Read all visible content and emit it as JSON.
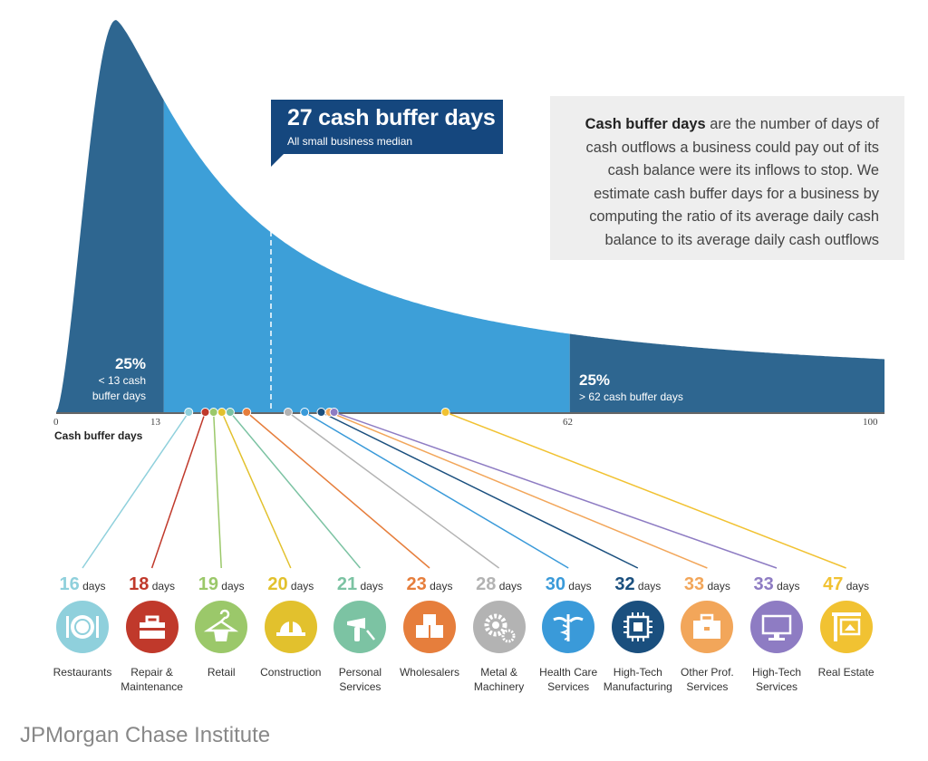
{
  "chart_data": {
    "type": "area",
    "x_axis": {
      "title": "Cash buffer days",
      "ticks": [
        "0",
        "13",
        "62",
        "100"
      ]
    },
    "median": {
      "value": 27,
      "title": "27 cash buffer days",
      "subtitle": "All small business median"
    },
    "lower_quartile": {
      "value": 13,
      "percent": "25%",
      "label_lines": [
        "< 13 cash",
        "buffer days"
      ]
    },
    "upper_quartile": {
      "value": 62,
      "percent": "25%",
      "label": "> 62 cash buffer days"
    },
    "industries": [
      {
        "name_lines": [
          "Restaurants"
        ],
        "days": 16,
        "color": "#8fd0dc",
        "icon": "plate-icon"
      },
      {
        "name_lines": [
          "Repair &",
          "Maintenance"
        ],
        "days": 18,
        "color": "#c0392b",
        "icon": "toolbox-icon"
      },
      {
        "name_lines": [
          "Retail"
        ],
        "days": 19,
        "color": "#9bc86a",
        "icon": "clothes-hanger-icon"
      },
      {
        "name_lines": [
          "Construction"
        ],
        "days": 20,
        "color": "#e2c12d",
        "icon": "hard-hat-icon"
      },
      {
        "name_lines": [
          "Personal",
          "Services"
        ],
        "days": 21,
        "color": "#7cc3a3",
        "icon": "hair-dryer-icon"
      },
      {
        "name_lines": [
          "Wholesalers"
        ],
        "days": 23,
        "color": "#e67e3c",
        "icon": "boxes-icon"
      },
      {
        "name_lines": [
          "Metal &",
          "Machinery"
        ],
        "days": 28,
        "color": "#b3b3b3",
        "icon": "gears-icon"
      },
      {
        "name_lines": [
          "Health Care",
          "Services"
        ],
        "days": 30,
        "color": "#3a9ad9",
        "icon": "caduceus-icon"
      },
      {
        "name_lines": [
          "High-Tech",
          "Manufacturing"
        ],
        "days": 32,
        "color": "#1a4f7e",
        "icon": "microchip-icon"
      },
      {
        "name_lines": [
          "Other Prof.",
          "Services"
        ],
        "days": 33,
        "color": "#f2a65a",
        "icon": "briefcase-icon"
      },
      {
        "name_lines": [
          "High-Tech",
          "Services"
        ],
        "days": 33,
        "color": "#8e7cc3",
        "icon": "computer-icon"
      },
      {
        "name_lines": [
          "Real Estate"
        ],
        "days": 47,
        "color": "#f1c232",
        "icon": "house-sign-icon"
      }
    ],
    "days_unit": "days",
    "colors": {
      "middle": "#3d9fd8",
      "tails": "#2e6690",
      "median_box": "#15477e"
    }
  },
  "definition": {
    "bold": "Cash buffer days",
    "text": " are the number of days of cash outflows a business could pay out of its cash balance were its inflows to stop. We estimate cash buffer days for a business by computing the ratio of its average daily cash balance to its average daily cash outflows"
  },
  "footer": "JPMorgan Chase Institute"
}
